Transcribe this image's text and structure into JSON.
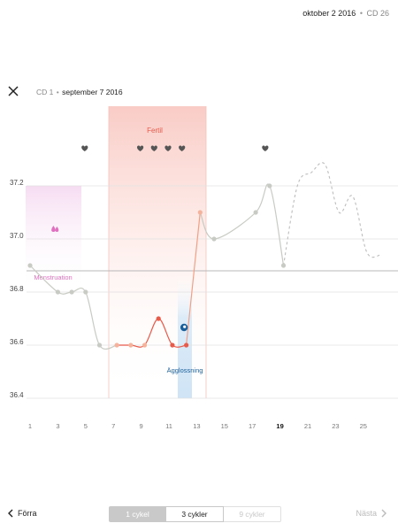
{
  "header": {
    "date": "oktober 2 2016",
    "separator": "•",
    "cycle_day": "CD 26"
  },
  "cycle": {
    "cd": "CD 1",
    "separator": "•",
    "start_date": "september 7 2016"
  },
  "chart_data": {
    "type": "line",
    "y_ticks": [
      "37.2",
      "37.0",
      "36.8",
      "36.6",
      "36.4"
    ],
    "x_ticks": [
      "1",
      "3",
      "5",
      "7",
      "9",
      "11",
      "13",
      "15",
      "17",
      "19",
      "21",
      "23",
      "25"
    ],
    "highlighted_x_tick": "19",
    "ylim": [
      36.4,
      37.2
    ],
    "coverline": 36.88,
    "annotations": {
      "fertile_label": "Fertil",
      "menstruation_label": "Menstruation",
      "ovulation_label": "Ägglossning"
    },
    "fertile_window": [
      7,
      13.5
    ],
    "menstruation_days": [
      1,
      4
    ],
    "ovulation_day": 12,
    "heart_days": [
      5,
      9,
      10,
      11,
      12,
      18
    ],
    "drop_day": 3,
    "points": [
      {
        "day": 1,
        "temp": 36.9
      },
      {
        "day": 3,
        "temp": 36.8
      },
      {
        "day": 4,
        "temp": 36.8
      },
      {
        "day": 5,
        "temp": 36.8
      },
      {
        "day": 6,
        "temp": 36.6
      },
      {
        "day": 7.25,
        "temp": 36.6
      },
      {
        "day": 8.25,
        "temp": 36.6
      },
      {
        "day": 9.25,
        "temp": 36.6
      },
      {
        "day": 10.25,
        "temp": 36.7
      },
      {
        "day": 11.25,
        "temp": 36.6
      },
      {
        "day": 12.25,
        "temp": 36.6
      },
      {
        "day": 13.25,
        "temp": 37.1
      },
      {
        "day": 14.25,
        "temp": 37.0
      },
      {
        "day": 17.25,
        "temp": 37.1
      },
      {
        "day": 18.25,
        "temp": 37.2
      },
      {
        "day": 19.25,
        "temp": 36.9
      }
    ],
    "ovulation_marker": {
      "day": 12.25,
      "temp": 36.69
    },
    "predicted": [
      {
        "day": 19.25,
        "temp": 36.9
      },
      {
        "day": 20.25,
        "temp": 37.2
      },
      {
        "day": 21.25,
        "temp": 37.25
      },
      {
        "day": 22.25,
        "temp": 37.28
      },
      {
        "day": 23.25,
        "temp": 37.1
      },
      {
        "day": 24.25,
        "temp": 37.16
      },
      {
        "day": 25.25,
        "temp": 36.95
      },
      {
        "day": 26.25,
        "temp": 36.94
      }
    ],
    "colors": {
      "gray": "#c8cbc3",
      "red": "#e85a4a",
      "salmon": "#f0a085",
      "pink": "#e070c0",
      "blue": "#1a5f9a",
      "heart": "#555555"
    }
  },
  "footer": {
    "prev_label": "Förra",
    "next_label": "Nästa",
    "segments": [
      "1 cykel",
      "3 cykler",
      "9 cykler"
    ]
  }
}
